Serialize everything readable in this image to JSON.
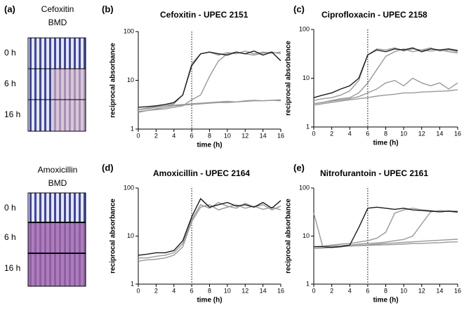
{
  "panel_a": {
    "label": "(a)",
    "plates": [
      {
        "title": [
          "Cefoxitin",
          "BMD"
        ],
        "rows": [
          "0 h",
          "6 h",
          "16 h"
        ]
      },
      {
        "title": [
          "Amoxicillin",
          "BMD"
        ],
        "rows": [
          "0 h",
          "6 h",
          "16 h"
        ]
      }
    ]
  },
  "chart_data": [
    {
      "type": "line",
      "label": "(b)",
      "title": "Cefoxitin -  UPEC 2151",
      "x_label": "time (h)",
      "y_label": "reciprocal absorbance",
      "yscale": "log",
      "xlim": [
        0,
        16
      ],
      "ylim": [
        1,
        100
      ],
      "xticks": [
        0,
        2,
        4,
        6,
        8,
        10,
        12,
        14,
        16
      ],
      "yticks": [
        1,
        10,
        100
      ],
      "vline": 6,
      "x": [
        0,
        1,
        2,
        3,
        4,
        5,
        6,
        7,
        8,
        9,
        10,
        11,
        12,
        13,
        14,
        15,
        16
      ],
      "series": [
        {
          "color": "#999999",
          "values": [
            2.5,
            2.6,
            2.8,
            3,
            3.3,
            5,
            22,
            35,
            38,
            33,
            37,
            35,
            40,
            35,
            38,
            36,
            38
          ]
        },
        {
          "color": "#999999",
          "values": [
            2.3,
            2.4,
            2.5,
            2.6,
            2.8,
            3,
            4,
            5,
            12,
            25,
            35,
            38,
            35,
            33,
            36,
            38,
            35
          ]
        },
        {
          "color": "#999999",
          "values": [
            2.2,
            2.4,
            2.6,
            2.8,
            3,
            3.1,
            3.2,
            3.3,
            3.4,
            3.5,
            3.5,
            3.6,
            3.7,
            3.8,
            3.8,
            3.9,
            4
          ]
        },
        {
          "color": "#999999",
          "values": [
            2.5,
            2.7,
            2.9,
            3,
            3.1,
            3.2,
            3.3,
            3.4,
            3.5,
            3.6,
            3.7,
            3.6,
            3.8,
            3.9,
            3.8,
            3.9,
            3.8
          ]
        },
        {
          "color": "#1a1a1a",
          "values": [
            2.8,
            2.9,
            3,
            3.2,
            3.5,
            5,
            20,
            35,
            38,
            35,
            33,
            38,
            35,
            40,
            33,
            38,
            25
          ]
        }
      ]
    },
    {
      "type": "line",
      "label": "(c)",
      "title": "Ciprofloxacin - UPEC 2158",
      "x_label": "time (h)",
      "y_label": "reciprocal absorbance",
      "yscale": "log",
      "xlim": [
        0,
        16
      ],
      "ylim": [
        1,
        100
      ],
      "xticks": [
        0,
        2,
        4,
        6,
        8,
        10,
        12,
        14,
        16
      ],
      "yticks": [
        1,
        10,
        100
      ],
      "vline": 6,
      "x": [
        0,
        1,
        2,
        3,
        4,
        5,
        6,
        7,
        8,
        9,
        10,
        11,
        12,
        13,
        14,
        15,
        16
      ],
      "series": [
        {
          "color": "#999999",
          "values": [
            3.5,
            3.8,
            4,
            4.5,
            5.5,
            9,
            30,
            40,
            38,
            42,
            36,
            40,
            38,
            42,
            36,
            38,
            35
          ]
        },
        {
          "color": "#999999",
          "values": [
            3,
            3.2,
            3.5,
            3.8,
            4,
            5,
            8,
            15,
            28,
            35,
            40,
            35,
            38,
            36,
            38,
            35,
            33
          ]
        },
        {
          "color": "#999999",
          "values": [
            3,
            3.2,
            3.4,
            3.6,
            3.8,
            4.2,
            5,
            6,
            8,
            9,
            7,
            10,
            8,
            7,
            8,
            6,
            8
          ]
        },
        {
          "color": "#999999",
          "values": [
            2.8,
            3,
            3.2,
            3.4,
            3.6,
            3.8,
            4,
            4.3,
            4.5,
            4.7,
            5,
            5,
            5.2,
            5.3,
            5.4,
            5.5,
            5.8
          ]
        },
        {
          "color": "#1a1a1a",
          "values": [
            4,
            4.5,
            5,
            6,
            7,
            10,
            30,
            38,
            35,
            40,
            38,
            42,
            35,
            40,
            38,
            40,
            37
          ]
        }
      ]
    },
    {
      "type": "line",
      "label": "(d)",
      "title": "Amoxicillin -  UPEC 2164",
      "x_label": "time (h)",
      "y_label": "reciprocal absorbance",
      "yscale": "log",
      "xlim": [
        0,
        16
      ],
      "ylim": [
        1,
        100
      ],
      "xticks": [
        0,
        2,
        4,
        6,
        8,
        10,
        12,
        14,
        16
      ],
      "yticks": [
        1,
        10,
        100
      ],
      "vline": 6,
      "x": [
        0,
        1,
        2,
        3,
        4,
        5,
        6,
        7,
        8,
        9,
        10,
        11,
        12,
        13,
        14,
        15,
        16
      ],
      "series": [
        {
          "color": "#999999",
          "values": [
            3.5,
            3.5,
            3.8,
            4,
            4.5,
            7,
            22,
            45,
            38,
            50,
            42,
            38,
            48,
            40,
            45,
            35,
            42
          ]
        },
        {
          "color": "#999999",
          "values": [
            3,
            3.2,
            3.3,
            3.5,
            4,
            6,
            20,
            40,
            45,
            35,
            40,
            45,
            38,
            42,
            36,
            40,
            35
          ]
        },
        {
          "color": "#1a1a1a",
          "values": [
            4,
            4.2,
            4.5,
            4.5,
            5,
            8,
            25,
            60,
            40,
            45,
            50,
            42,
            45,
            40,
            50,
            38,
            55
          ]
        }
      ]
    },
    {
      "type": "line",
      "label": "(e)",
      "title": "Nitrofurantoin - UPEC 2161",
      "x_label": "time (h)",
      "y_label": "reciprocal absorbance",
      "yscale": "log",
      "xlim": [
        0,
        16
      ],
      "ylim": [
        1,
        100
      ],
      "xticks": [
        0,
        2,
        4,
        6,
        8,
        10,
        12,
        14,
        16
      ],
      "yticks": [
        1,
        10,
        100
      ],
      "vline": 6,
      "x": [
        0,
        1,
        2,
        3,
        4,
        5,
        6,
        7,
        8,
        9,
        10,
        11,
        12,
        13,
        14,
        15,
        16
      ],
      "series": [
        {
          "color": "#999999",
          "values": [
            6,
            6.2,
            6.5,
            6.8,
            7,
            7.5,
            8,
            9,
            12,
            30,
            35,
            38,
            35,
            34,
            32,
            33,
            31
          ]
        },
        {
          "color": "#999999",
          "values": [
            6,
            6,
            6.2,
            6.3,
            6.5,
            6.8,
            7,
            7.2,
            7.5,
            8,
            8.5,
            10,
            18,
            32,
            34,
            33,
            33
          ]
        },
        {
          "color": "#999999",
          "values": [
            5.5,
            5.6,
            5.8,
            6,
            6.2,
            6.4,
            6.6,
            6.8,
            7,
            7.2,
            7.4,
            7.6,
            7.8,
            8,
            8.2,
            8.4,
            8.6
          ]
        },
        {
          "color": "#999999",
          "values": [
            30,
            6,
            6,
            6.1,
            6.2,
            6.3,
            6.4,
            6.5,
            6.6,
            6.7,
            6.8,
            7,
            7,
            7.2,
            7.3,
            7.5,
            7.6
          ]
        },
        {
          "color": "#1a1a1a",
          "values": [
            6,
            6,
            5.8,
            6,
            6.5,
            15,
            38,
            40,
            38,
            36,
            38,
            35,
            34,
            33,
            32,
            33,
            32
          ]
        }
      ]
    }
  ]
}
